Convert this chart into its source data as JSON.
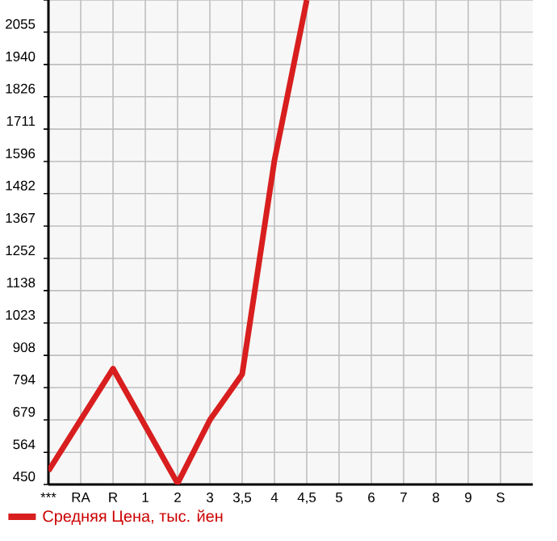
{
  "chart_data": {
    "type": "line",
    "categories": [
      "***",
      "RA",
      "R",
      "1",
      "2",
      "3",
      "3,5",
      "4",
      "4,5",
      "5",
      "6",
      "7",
      "8",
      "9",
      "S"
    ],
    "series": [
      {
        "name": "Средняя Цена, тыс. йен",
        "color": "#d81e1e",
        "values": [
          498,
          null,
          861,
          null,
          454,
          679,
          841,
          1600,
          2169,
          null,
          null,
          null,
          null,
          null,
          null
        ]
      }
    ],
    "ylim": [
      450,
      2169
    ],
    "yticks": [
      450,
      564,
      679,
      794,
      908,
      1023,
      1138,
      1252,
      1367,
      1482,
      1596,
      1711,
      1826,
      1940,
      2055,
      {
        "value": 2169,
        "label": null
      }
    ],
    "grid": true,
    "legend": "bottom",
    "marker": "none",
    "line_style": "solid"
  }
}
